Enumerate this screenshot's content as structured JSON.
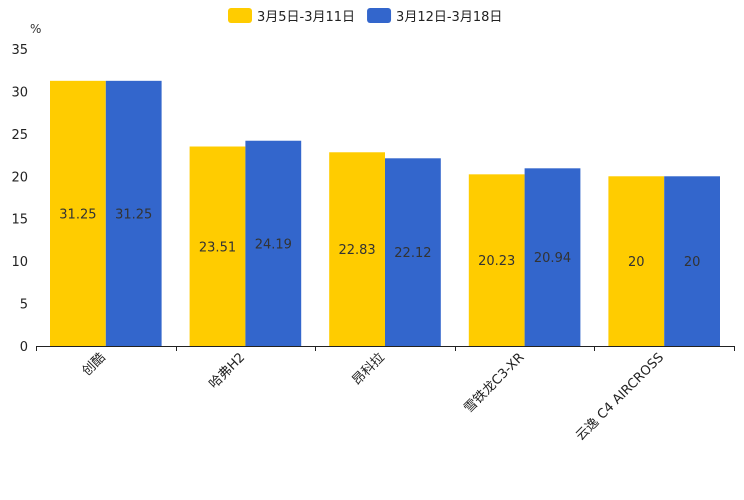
{
  "chart_data": {
    "type": "bar",
    "title": "",
    "ylabel": "%",
    "xlabel": "",
    "ylim": [
      0,
      35
    ],
    "yticks": [
      0,
      5,
      10,
      15,
      20,
      25,
      30,
      35
    ],
    "categories": [
      "创酷",
      "哈弗H2",
      "昂科拉",
      "雪铁龙C3-XR",
      "云逸 C4 AIRCROSS"
    ],
    "series": [
      {
        "name": "3月5日-3月11日",
        "color": "#FFCC00",
        "values": [
          31.25,
          23.51,
          22.83,
          20.23,
          20
        ]
      },
      {
        "name": "3月12日-3月18日",
        "color": "#3366CC",
        "values": [
          31.25,
          24.19,
          22.12,
          20.94,
          20
        ]
      }
    ],
    "legend_position": "top-center",
    "grid": false
  }
}
